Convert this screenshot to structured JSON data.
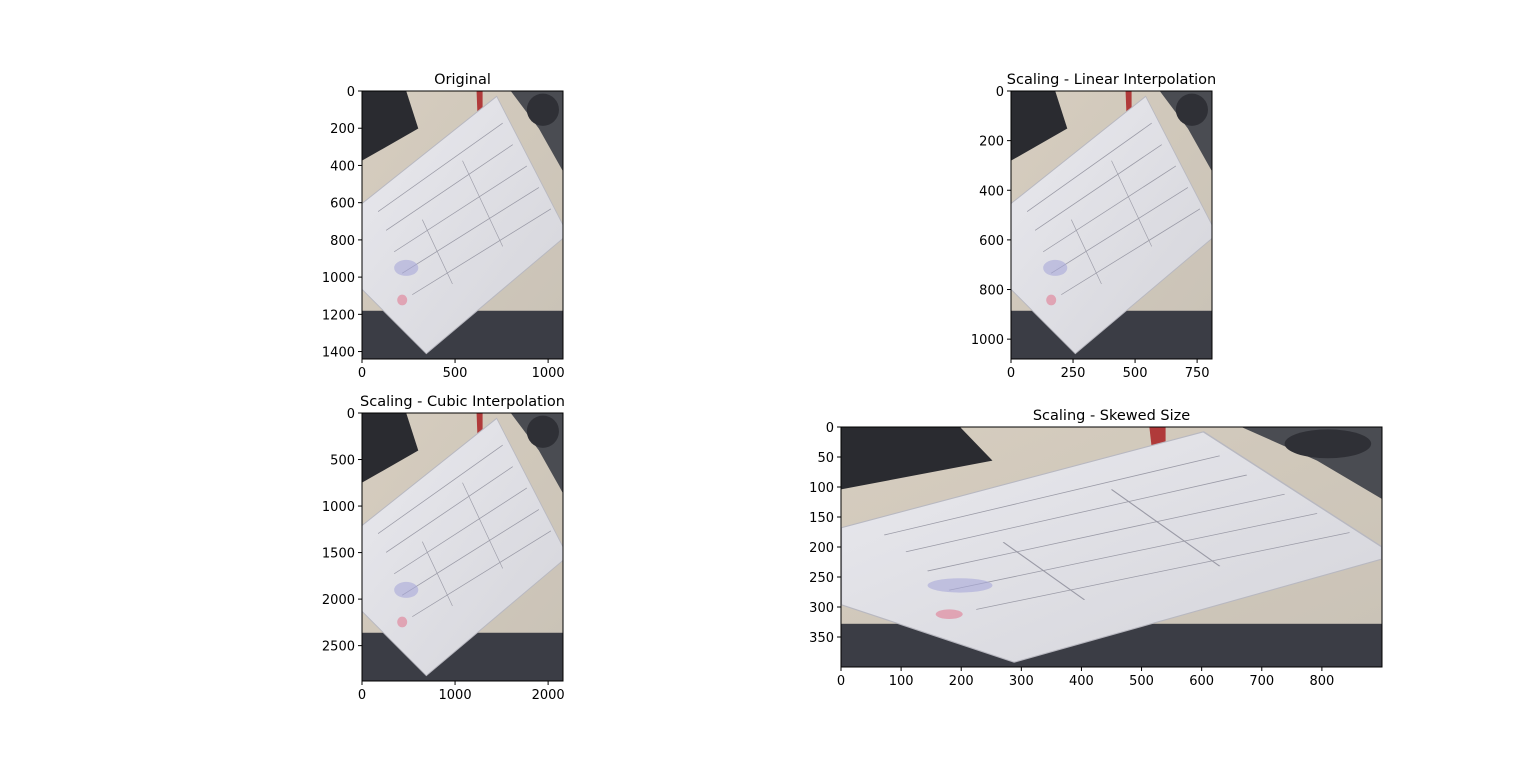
{
  "chart_data": [
    {
      "type": "image",
      "title": "Original",
      "xlim": [
        0,
        1080
      ],
      "ylim": [
        1440,
        0
      ],
      "xticks": [
        0,
        500,
        1000
      ],
      "yticks": [
        0,
        200,
        400,
        600,
        800,
        1000,
        1200,
        1400
      ]
    },
    {
      "type": "image",
      "title": "Scaling - Linear Interpolation",
      "xlim": [
        0,
        810
      ],
      "ylim": [
        1080,
        0
      ],
      "xticks": [
        0,
        250,
        500,
        750
      ],
      "yticks": [
        0,
        200,
        400,
        600,
        800,
        1000
      ]
    },
    {
      "type": "image",
      "title": "Scaling - Cubic Interpolation",
      "xlim": [
        0,
        2160
      ],
      "ylim": [
        2880,
        0
      ],
      "xticks": [
        0,
        1000,
        2000
      ],
      "yticks": [
        0,
        500,
        1000,
        1500,
        2000,
        2500
      ]
    },
    {
      "type": "image",
      "title": "Scaling - Skewed Size",
      "xlim": [
        0,
        900
      ],
      "ylim": [
        400,
        0
      ],
      "xticks": [
        0,
        100,
        200,
        300,
        400,
        500,
        600,
        700,
        800
      ],
      "yticks": [
        0,
        50,
        100,
        150,
        200,
        250,
        300,
        350
      ]
    }
  ]
}
